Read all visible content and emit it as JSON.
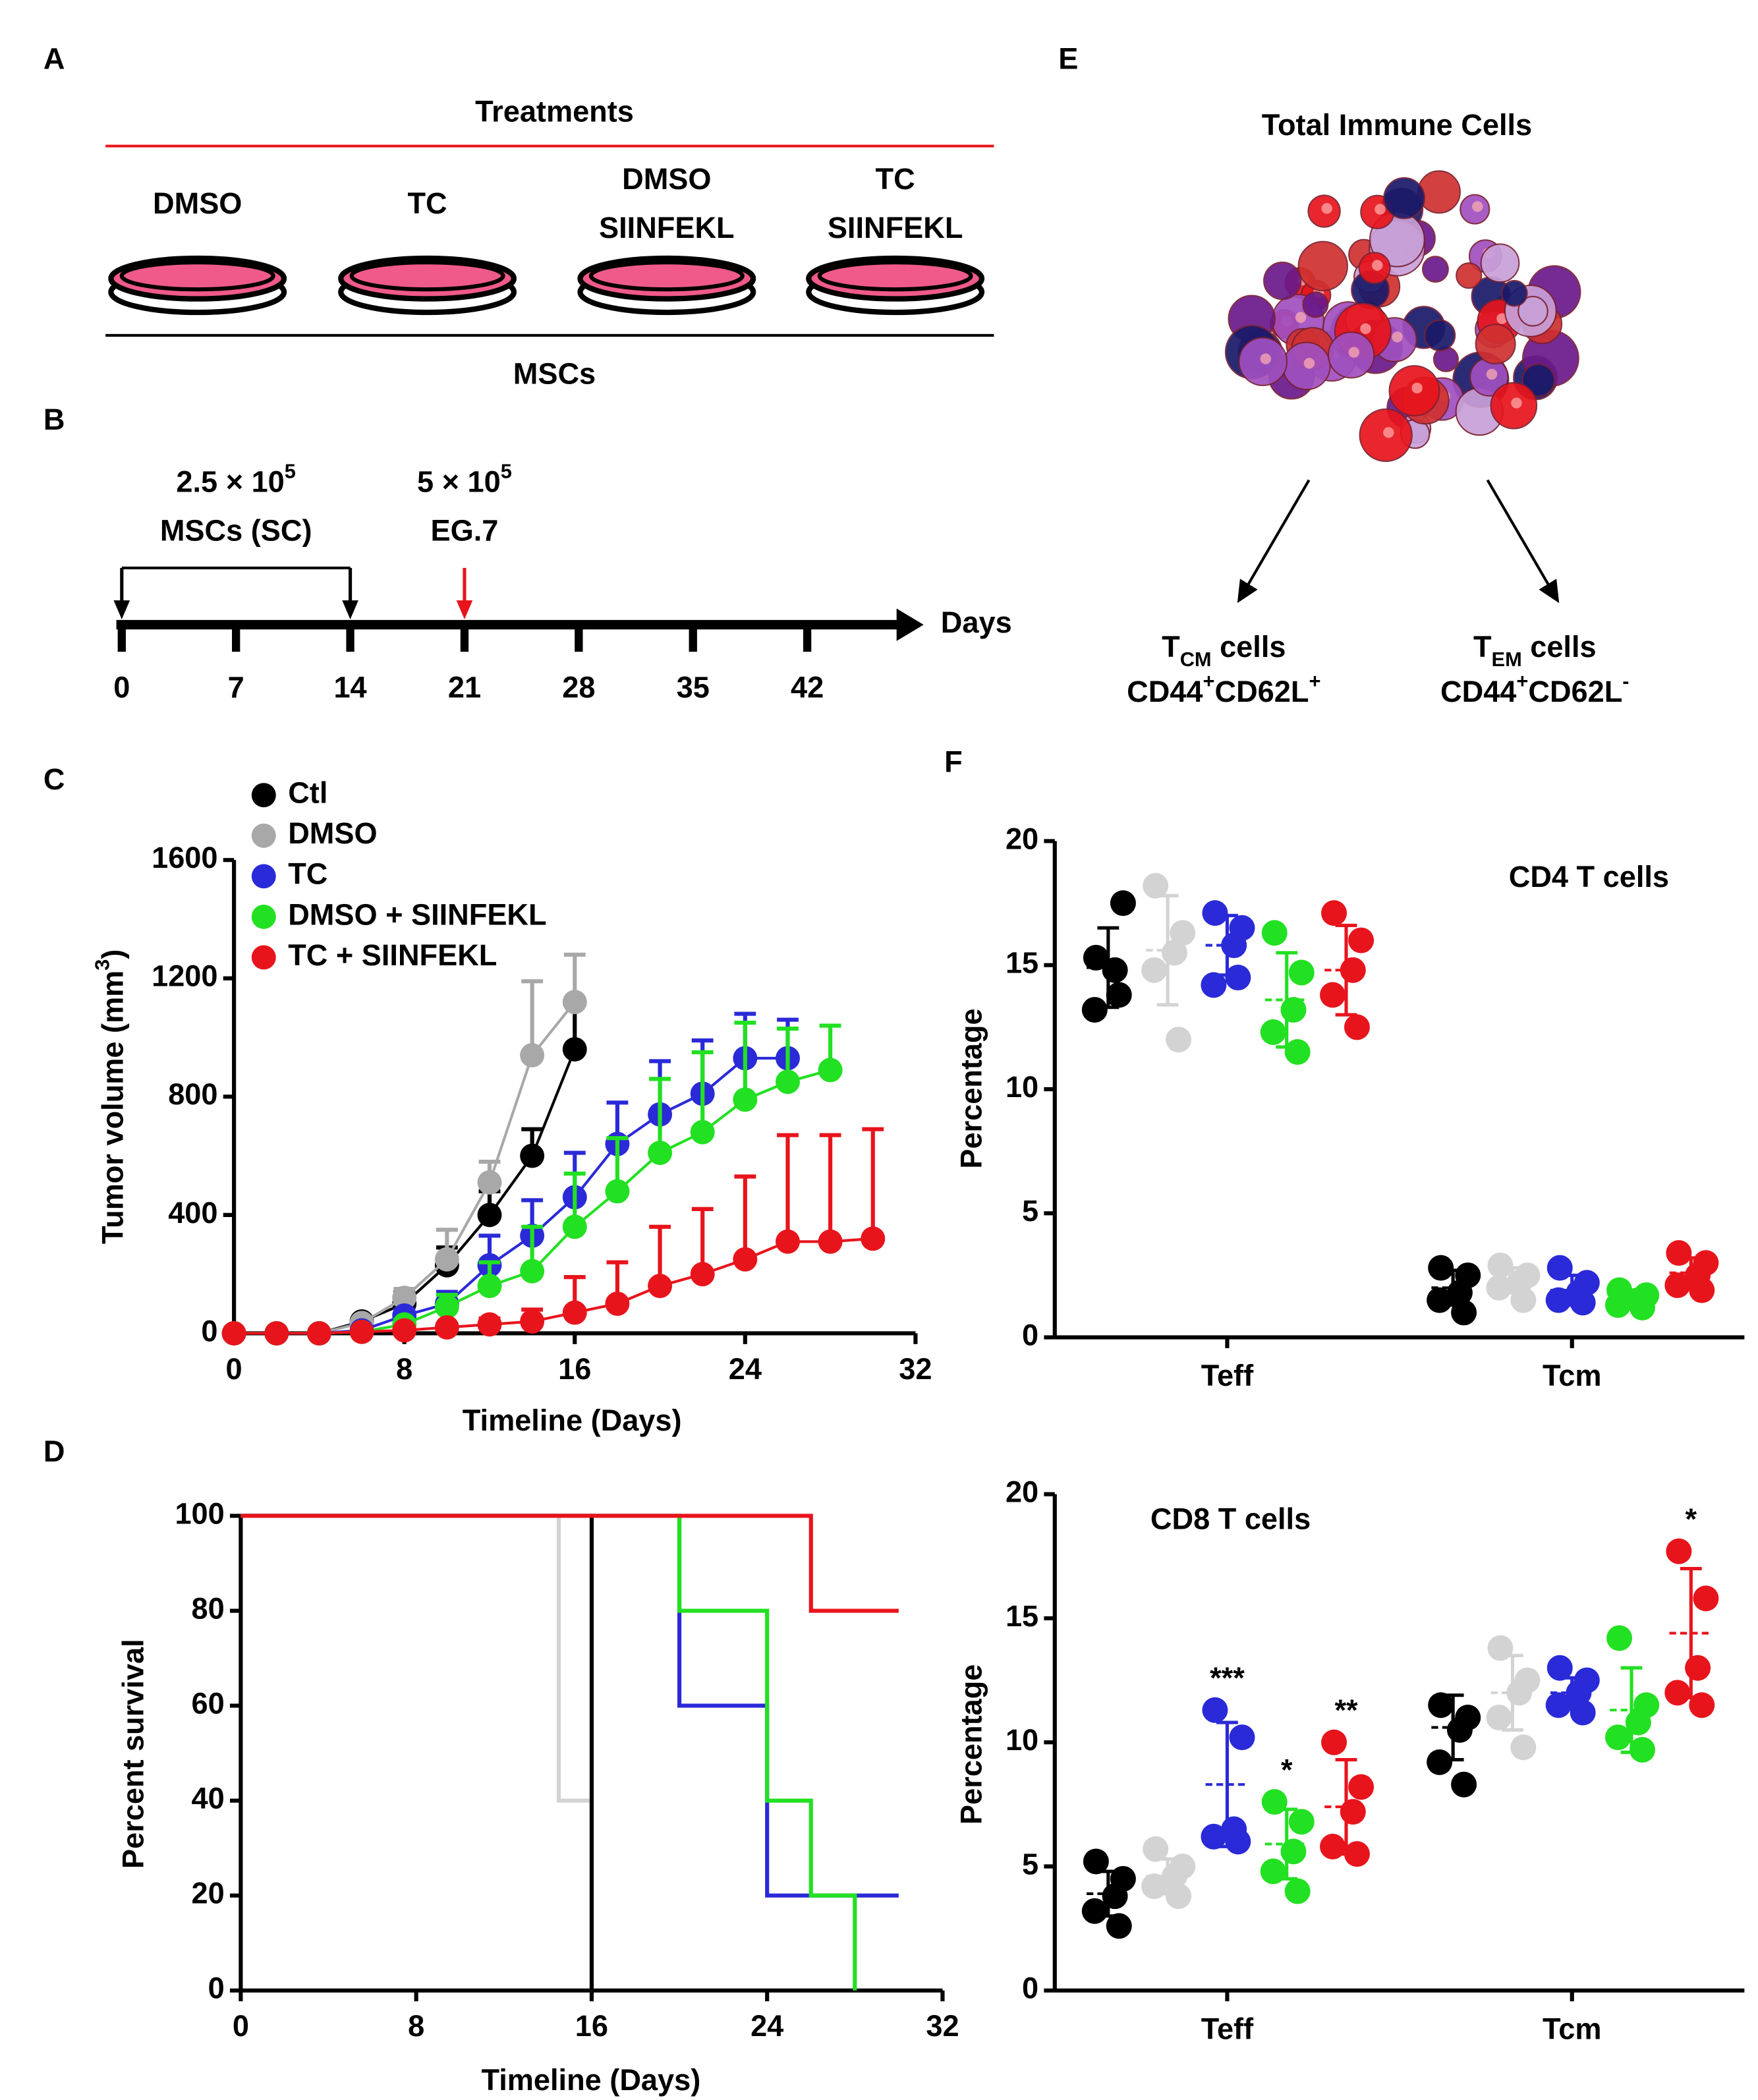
{
  "panel_labels": [
    "A",
    "B",
    "C",
    "D",
    "E",
    "F"
  ],
  "treatments": {
    "title": "Treatments",
    "dishes": [
      [
        "DMSO"
      ],
      [
        "TC"
      ],
      [
        "DMSO",
        "SIINFEKL"
      ],
      [
        "TC",
        "SIINFEKL"
      ]
    ],
    "base": "MSCs"
  },
  "timeline": {
    "label": "Days",
    "ticks": [
      0,
      7,
      14,
      21,
      28,
      35,
      42
    ],
    "injections": [
      {
        "amount": "2.5 × 10",
        "exponent": "5",
        "cells": "MSCs (SC)",
        "days": [
          0,
          14
        ],
        "color": "#000000"
      },
      {
        "amount": "5 × 10",
        "exponent": "5",
        "cells": "EG.7",
        "days": [
          21
        ],
        "color": "#e8141c"
      }
    ]
  },
  "immune": {
    "title": "Total Immune Cells",
    "subsets": [
      {
        "name": "T",
        "sub": "CM",
        "suffix": " cells",
        "markers": [
          "CD44",
          "+",
          "CD62L",
          "+"
        ]
      },
      {
        "name": "T",
        "sub": "EM",
        "suffix": " cells",
        "markers": [
          "CD44",
          "+",
          "CD62L",
          "-"
        ]
      }
    ]
  },
  "chart_data": [
    {
      "type": "line",
      "xlabel": "Timeline (Days)",
      "ylabel": "Tumor volume (mm",
      "ylabel_sup": "3",
      "ylabel_end": ")",
      "xlim": [
        0,
        32
      ],
      "xticks": [
        0,
        8,
        16,
        24,
        32
      ],
      "ylim": [
        0,
        1600
      ],
      "yticks": [
        0,
        400,
        800,
        1200,
        1600
      ],
      "legend": "top-left",
      "series": [
        {
          "name": "Ctl",
          "color": "#000000",
          "x": [
            0,
            2,
            4,
            6,
            8,
            10,
            12,
            14,
            16
          ],
          "values": [
            0,
            0,
            0,
            40,
            100,
            230,
            400,
            600,
            960
          ],
          "errors": [
            0,
            0,
            0,
            10,
            40,
            60,
            80,
            90,
            150
          ]
        },
        {
          "name": "DMSO",
          "color": "#a8a8a8",
          "x": [
            0,
            2,
            4,
            6,
            8,
            10,
            12,
            14,
            16
          ],
          "values": [
            0,
            0,
            0,
            35,
            120,
            250,
            510,
            940,
            1120
          ],
          "errors": [
            0,
            0,
            0,
            10,
            30,
            100,
            70,
            250,
            160
          ]
        },
        {
          "name": "TC",
          "color": "#2a2ad8",
          "x": [
            0,
            2,
            4,
            6,
            8,
            10,
            12,
            14,
            16,
            18,
            20,
            22,
            24,
            26
          ],
          "values": [
            0,
            0,
            0,
            10,
            60,
            100,
            230,
            330,
            460,
            640,
            740,
            810,
            930,
            930
          ],
          "errors": [
            0,
            0,
            0,
            5,
            20,
            40,
            100,
            120,
            150,
            140,
            180,
            180,
            150,
            130
          ]
        },
        {
          "name": "DMSO + SIINFEKL",
          "color": "#22e022",
          "x": [
            0,
            2,
            4,
            6,
            8,
            10,
            12,
            14,
            16,
            18,
            20,
            22,
            24,
            26,
            28
          ],
          "values": [
            0,
            0,
            0,
            5,
            30,
            90,
            160,
            210,
            360,
            480,
            610,
            680,
            790,
            850,
            890
          ],
          "errors": [
            0,
            0,
            0,
            5,
            15,
            40,
            80,
            150,
            180,
            180,
            250,
            270,
            260,
            180,
            150
          ]
        },
        {
          "name": "TC + SIINFEKL",
          "color": "#e8141c",
          "x": [
            0,
            2,
            4,
            6,
            8,
            10,
            12,
            14,
            16,
            18,
            20,
            22,
            24,
            26,
            28,
            30
          ],
          "values": [
            0,
            0,
            0,
            5,
            10,
            20,
            30,
            40,
            70,
            100,
            160,
            200,
            250,
            310,
            310,
            320
          ],
          "errors": [
            0,
            0,
            0,
            5,
            5,
            10,
            20,
            40,
            120,
            140,
            200,
            220,
            280,
            360,
            360,
            370
          ]
        }
      ]
    },
    {
      "type": "step",
      "xlabel": "Timeline (Days)",
      "ylabel": "Percent survival",
      "xlim": [
        0,
        32
      ],
      "xticks": [
        0,
        8,
        16,
        24,
        32
      ],
      "ylim": [
        0,
        100
      ],
      "yticks": [
        0,
        20,
        40,
        60,
        80,
        100
      ],
      "series": [
        {
          "color": "#d3d3d3",
          "x": [
            0,
            14.5,
            16
          ],
          "values": [
            100,
            40,
            0
          ]
        },
        {
          "color": "#000000",
          "x": [
            0,
            16,
            16
          ],
          "values": [
            100,
            40,
            0
          ]
        },
        {
          "color": "#2a2ad8",
          "x": [
            0,
            20,
            20,
            24,
            30
          ],
          "values": [
            100,
            80,
            60,
            20,
            20
          ]
        },
        {
          "color": "#22e022",
          "x": [
            0,
            20,
            24,
            26,
            28
          ],
          "values": [
            100,
            80,
            40,
            20,
            0
          ]
        },
        {
          "color": "#e8141c",
          "x": [
            0,
            26,
            30
          ],
          "values": [
            100,
            80,
            80
          ]
        }
      ]
    },
    {
      "type": "dot",
      "title": "CD4 T cells",
      "ylabel": "Percentage",
      "categories": [
        "Teff",
        "Tcm"
      ],
      "ylim": [
        0,
        20
      ],
      "yticks": [
        0,
        5,
        10,
        15,
        20
      ],
      "series": [
        {
          "color": "#000000",
          "points": [
            [
              15.3,
              17.5,
              14.8,
              13.2,
              13.8
            ],
            [
              2.8,
              2.5,
              1.8,
              1.5,
              1.0
            ]
          ],
          "mean": [
            14.9,
            2.0
          ],
          "sd": [
            1.6,
            0.7
          ]
        },
        {
          "color": "#d3d3d3",
          "points": [
            [
              18.2,
              16.3,
              15.5,
              14.8,
              12.0
            ],
            [
              2.9,
              2.5,
              2.2,
              2.0,
              1.5
            ]
          ],
          "mean": [
            15.6,
            2.3
          ],
          "sd": [
            2.2,
            0.5
          ]
        },
        {
          "color": "#2a2ad8",
          "points": [
            [
              17.1,
              16.5,
              15.8,
              14.2,
              14.5
            ],
            [
              2.8,
              2.2,
              1.8,
              1.5,
              1.4
            ]
          ],
          "mean": [
            15.8,
            1.9
          ],
          "sd": [
            1.2,
            0.6
          ]
        },
        {
          "color": "#22e022",
          "points": [
            [
              16.3,
              14.7,
              13.2,
              12.3,
              11.5
            ],
            [
              1.9,
              1.7,
              1.5,
              1.3,
              1.2
            ]
          ],
          "mean": [
            13.6,
            1.6
          ],
          "sd": [
            1.9,
            0.3
          ]
        },
        {
          "color": "#e8141c",
          "points": [
            [
              17.1,
              16.0,
              14.8,
              13.8,
              12.5
            ],
            [
              3.4,
              3.0,
              2.5,
              2.1,
              1.9
            ]
          ],
          "mean": [
            14.8,
            2.6
          ],
          "sd": [
            1.8,
            0.6
          ]
        }
      ]
    },
    {
      "type": "dot",
      "title": "CD8 T cells",
      "ylabel": "Percentage",
      "categories": [
        "Teff",
        "Tcm"
      ],
      "ylim": [
        0,
        20
      ],
      "yticks": [
        0,
        5,
        10,
        15,
        20
      ],
      "series": [
        {
          "color": "#000000",
          "points": [
            [
              5.2,
              4.5,
              3.8,
              3.2,
              2.6
            ],
            [
              11.5,
              11.0,
              10.5,
              9.2,
              8.3
            ]
          ],
          "mean": [
            3.9,
            10.6
          ],
          "sd": [
            0.9,
            1.3
          ]
        },
        {
          "color": "#d3d3d3",
          "points": [
            [
              5.7,
              5.0,
              4.6,
              4.2,
              3.8
            ],
            [
              13.8,
              12.5,
              12.0,
              11.0,
              9.8
            ]
          ],
          "mean": [
            4.6,
            12.0
          ],
          "sd": [
            0.7,
            1.5
          ]
        },
        {
          "color": "#2a2ad8",
          "points": [
            [
              11.3,
              10.2,
              6.5,
              6.2,
              6.0
            ],
            [
              13.0,
              12.5,
              12.0,
              11.5,
              11.2
            ]
          ],
          "mean": [
            8.3,
            12.0
          ],
          "sd": [
            2.5,
            0.6
          ]
        },
        {
          "color": "#22e022",
          "points": [
            [
              7.6,
              6.8,
              5.6,
              4.8,
              4.0
            ],
            [
              14.2,
              11.5,
              10.8,
              10.2,
              9.7
            ]
          ],
          "mean": [
            5.9,
            11.3
          ],
          "sd": [
            1.4,
            1.7
          ]
        },
        {
          "color": "#e8141c",
          "points": [
            [
              10.0,
              8.2,
              7.2,
              5.8,
              5.5
            ],
            [
              17.7,
              15.8,
              13.0,
              12.0,
              11.5
            ]
          ],
          "mean": [
            7.4,
            14.4
          ],
          "sd": [
            1.9,
            2.6
          ]
        }
      ],
      "annotations": [
        {
          "text": "***",
          "category": 0,
          "series": 2
        },
        {
          "text": "*",
          "category": 0,
          "series": 3
        },
        {
          "text": "**",
          "category": 0,
          "series": 4
        },
        {
          "text": "*",
          "category": 1,
          "series": 4
        }
      ]
    }
  ]
}
